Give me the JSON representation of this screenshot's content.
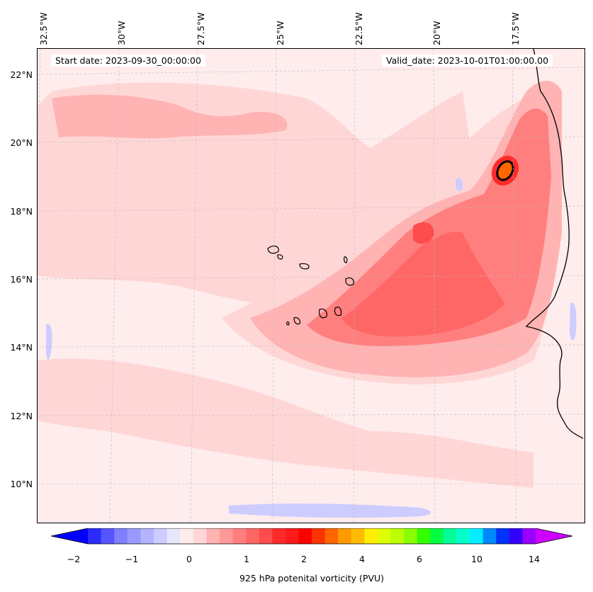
{
  "map": {
    "start_date_text": "Start date: 2023-09-30_00:00:00",
    "valid_date_text": "Valid_date: 2023-10-01T01:00:00.00",
    "lon_labels": [
      "32.5°W",
      "30°W",
      "27.5°W",
      "25°W",
      "22.5°W",
      "20°W",
      "17.5°W"
    ],
    "lat_labels": [
      "22°N",
      "20°N",
      "18°N",
      "16°N",
      "14°N",
      "12°N",
      "10°N"
    ],
    "background_color": "#ffecec",
    "coastline_color": "#000000"
  },
  "colorbar": {
    "title": "925 hPa potenital vorticity (PVU)",
    "tick_labels": [
      "−2",
      "−1",
      "0",
      "1",
      "2",
      "4",
      "6",
      "10",
      "14"
    ],
    "colors": [
      "#0000ff",
      "#2b2bff",
      "#5555ff",
      "#7f7fff",
      "#9999ff",
      "#b3b3ff",
      "#ccccff",
      "#e6e6ff",
      "#ffecec",
      "#ffd6d6",
      "#ffb3b3",
      "#ff9999",
      "#ff7f7f",
      "#ff6666",
      "#ff4c4c",
      "#ff2b2b",
      "#ff1a1a",
      "#ff0000",
      "#ff3300",
      "#ff6600",
      "#ff9900",
      "#ffbb00",
      "#ffee00",
      "#ddff00",
      "#bbff00",
      "#88ff00",
      "#33ff00",
      "#00ff44",
      "#00ff99",
      "#00ffcc",
      "#00eeff",
      "#0088ff",
      "#0033ff",
      "#3300ff",
      "#9900ff",
      "#cc00ff"
    ]
  }
}
